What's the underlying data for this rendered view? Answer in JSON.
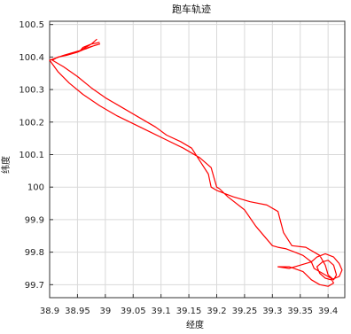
{
  "chart_data": {
    "type": "line",
    "title": "跑车轨迹",
    "xlabel": "经度",
    "ylabel": "纬度",
    "xlim": [
      38.9,
      39.43
    ],
    "ylim": [
      99.66,
      100.51
    ],
    "grid": true,
    "x_ticks": [
      "38.9",
      "38.95",
      "39",
      "39.05",
      "39.1",
      "39.15",
      "39.2",
      "39.25",
      "39.3",
      "39.35",
      "39.4"
    ],
    "y_ticks": [
      "100.5",
      "100.4",
      "100.3",
      "100.2",
      "100.1",
      "100",
      "99.9",
      "99.8",
      "99.7"
    ],
    "series": [
      {
        "color": "#ff0000",
        "x": [
          38.99,
          38.975,
          38.96,
          38.955,
          38.965,
          38.98,
          38.99,
          38.97,
          38.95,
          38.93,
          38.915,
          38.905,
          38.925,
          38.95,
          38.975,
          39.0,
          39.03,
          39.06,
          39.09,
          39.11,
          39.135,
          39.155,
          39.17,
          39.185,
          39.19,
          39.2,
          39.23,
          39.26,
          39.29,
          39.31,
          39.32,
          39.335,
          39.36,
          39.385,
          39.395,
          39.4,
          39.41,
          39.415,
          39.41,
          39.4,
          39.39,
          39.38,
          39.385,
          39.395,
          39.405,
          39.42,
          39.425,
          39.42,
          39.41,
          39.395,
          39.38,
          39.37,
          39.375,
          39.39,
          39.405,
          39.41,
          39.4,
          39.385,
          39.37,
          39.355,
          39.33,
          39.31,
          39.33,
          39.35,
          39.37,
          39.355,
          39.34,
          39.325,
          39.31,
          39.3,
          39.285,
          39.27,
          39.25,
          39.22,
          39.205,
          39.2,
          39.195,
          39.19,
          39.17,
          39.14,
          39.11,
          39.08,
          39.05,
          39.02,
          38.99,
          38.96,
          38.935,
          38.915,
          38.9,
          38.925,
          38.955,
          38.975,
          38.985
        ],
        "y": [
          100.445,
          100.44,
          100.43,
          100.42,
          100.425,
          100.435,
          100.44,
          100.43,
          100.415,
          100.405,
          100.4,
          100.39,
          100.37,
          100.34,
          100.305,
          100.275,
          100.245,
          100.215,
          100.185,
          100.16,
          100.14,
          100.12,
          100.08,
          100.04,
          100.0,
          99.99,
          99.97,
          99.955,
          99.945,
          99.925,
          99.86,
          99.82,
          99.815,
          99.79,
          99.76,
          99.73,
          99.715,
          99.73,
          99.76,
          99.775,
          99.77,
          99.755,
          99.735,
          99.72,
          99.715,
          99.725,
          99.745,
          99.765,
          99.785,
          99.795,
          99.785,
          99.77,
          99.75,
          99.735,
          99.72,
          99.705,
          99.695,
          99.7,
          99.715,
          99.74,
          99.755,
          99.755,
          99.75,
          99.76,
          99.77,
          99.79,
          99.8,
          99.81,
          99.815,
          99.82,
          99.85,
          99.88,
          99.93,
          99.97,
          99.995,
          100.0,
          100.03,
          100.06,
          100.09,
          100.12,
          100.145,
          100.17,
          100.195,
          100.22,
          100.25,
          100.285,
          100.32,
          100.355,
          100.39,
          100.405,
          100.42,
          100.44,
          100.455
        ]
      }
    ]
  }
}
